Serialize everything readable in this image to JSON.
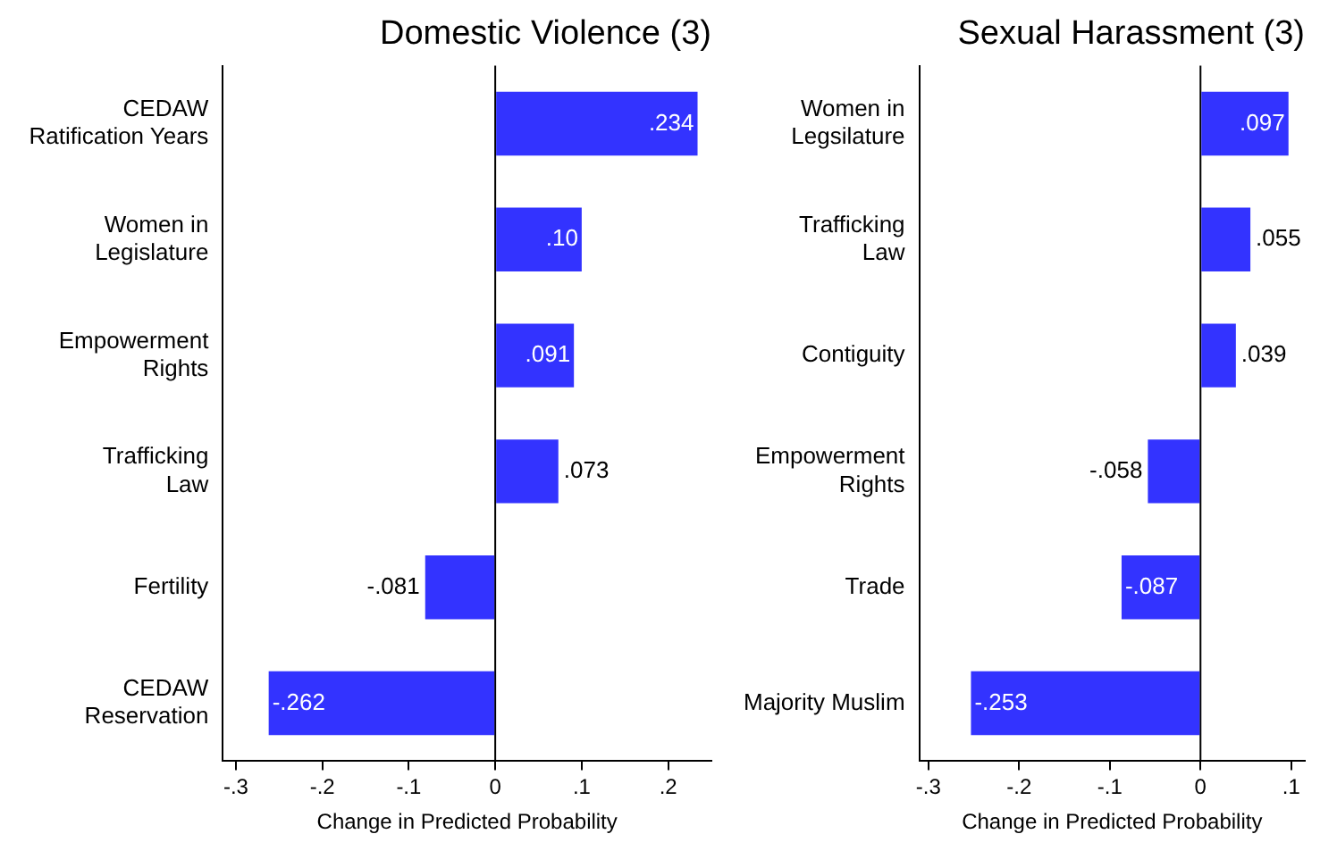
{
  "chart_data": [
    {
      "type": "bar",
      "orientation": "horizontal",
      "title": "Domestic Violence (3)",
      "xlabel": "Change in Predicted Probability",
      "categories": [
        "CEDAW\nRatification Years",
        "Women in\nLegislature",
        "Empowerment\nRights",
        "Trafficking\nLaw",
        "Fertility",
        "CEDAW\nReservation"
      ],
      "values": [
        0.234,
        0.1,
        0.091,
        0.073,
        -0.081,
        -0.262
      ],
      "value_labels": [
        ".234",
        ".10",
        ".091",
        ".073",
        "-.081",
        "-.262"
      ],
      "color": "#3333ff",
      "xlim": [
        -0.315,
        0.25
      ],
      "xticks": [
        {
          "value": -0.3,
          "label": "-.3"
        },
        {
          "value": -0.2,
          "label": "-.2"
        },
        {
          "value": -0.1,
          "label": "-.1"
        },
        0,
        {
          "value": 0.1,
          "label": ".1"
        },
        {
          "value": 0.2,
          "label": ".2"
        }
      ],
      "ref_lines": [
        {
          "axis": "x",
          "value": 0,
          "color": "#000000"
        }
      ],
      "grid": false,
      "legend": false
    },
    {
      "type": "bar",
      "orientation": "horizontal",
      "title": "Sexual Harassment (3)",
      "xlabel": "Change in Predicted Probability",
      "categories": [
        "Women in\nLegsilature",
        "Trafficking\nLaw",
        "Contiguity",
        "Empowerment\nRights",
        "Trade",
        "Majority Muslim"
      ],
      "values": [
        0.097,
        0.055,
        0.039,
        -0.058,
        -0.087,
        -0.253
      ],
      "value_labels": [
        ".097",
        ".055",
        ".039",
        "-.058",
        "-.087",
        "-.253"
      ],
      "color": "#3333ff",
      "xlim": [
        -0.31,
        0.115
      ],
      "xticks": [
        {
          "value": -0.3,
          "label": "-.3"
        },
        {
          "value": -0.2,
          "label": "-.2"
        },
        {
          "value": -0.1,
          "label": "-.1"
        },
        0,
        {
          "value": 0.1,
          "label": ".1"
        }
      ],
      "ref_lines": [
        {
          "axis": "x",
          "value": 0,
          "color": "#000000"
        }
      ],
      "grid": false,
      "legend": false
    }
  ]
}
